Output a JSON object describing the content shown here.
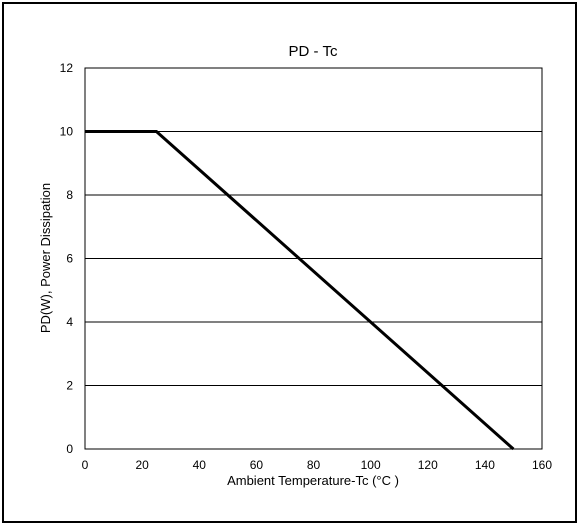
{
  "chart_data": {
    "type": "line",
    "title": "PD - Tc",
    "xlabel": "Ambient Temperature-Tc (°C )",
    "ylabel": "PD(W), Power Dissipation",
    "xlim": [
      0,
      160
    ],
    "ylim": [
      0,
      12
    ],
    "x_ticks": [
      0,
      20,
      40,
      60,
      80,
      100,
      120,
      140,
      160
    ],
    "y_ticks": [
      0,
      2,
      4,
      6,
      8,
      10,
      12
    ],
    "grid": "horizontal",
    "legend": "none",
    "line_color": "#000000",
    "series": [
      {
        "x": [
          0,
          25,
          150
        ],
        "y": [
          10,
          10,
          0
        ]
      }
    ]
  }
}
